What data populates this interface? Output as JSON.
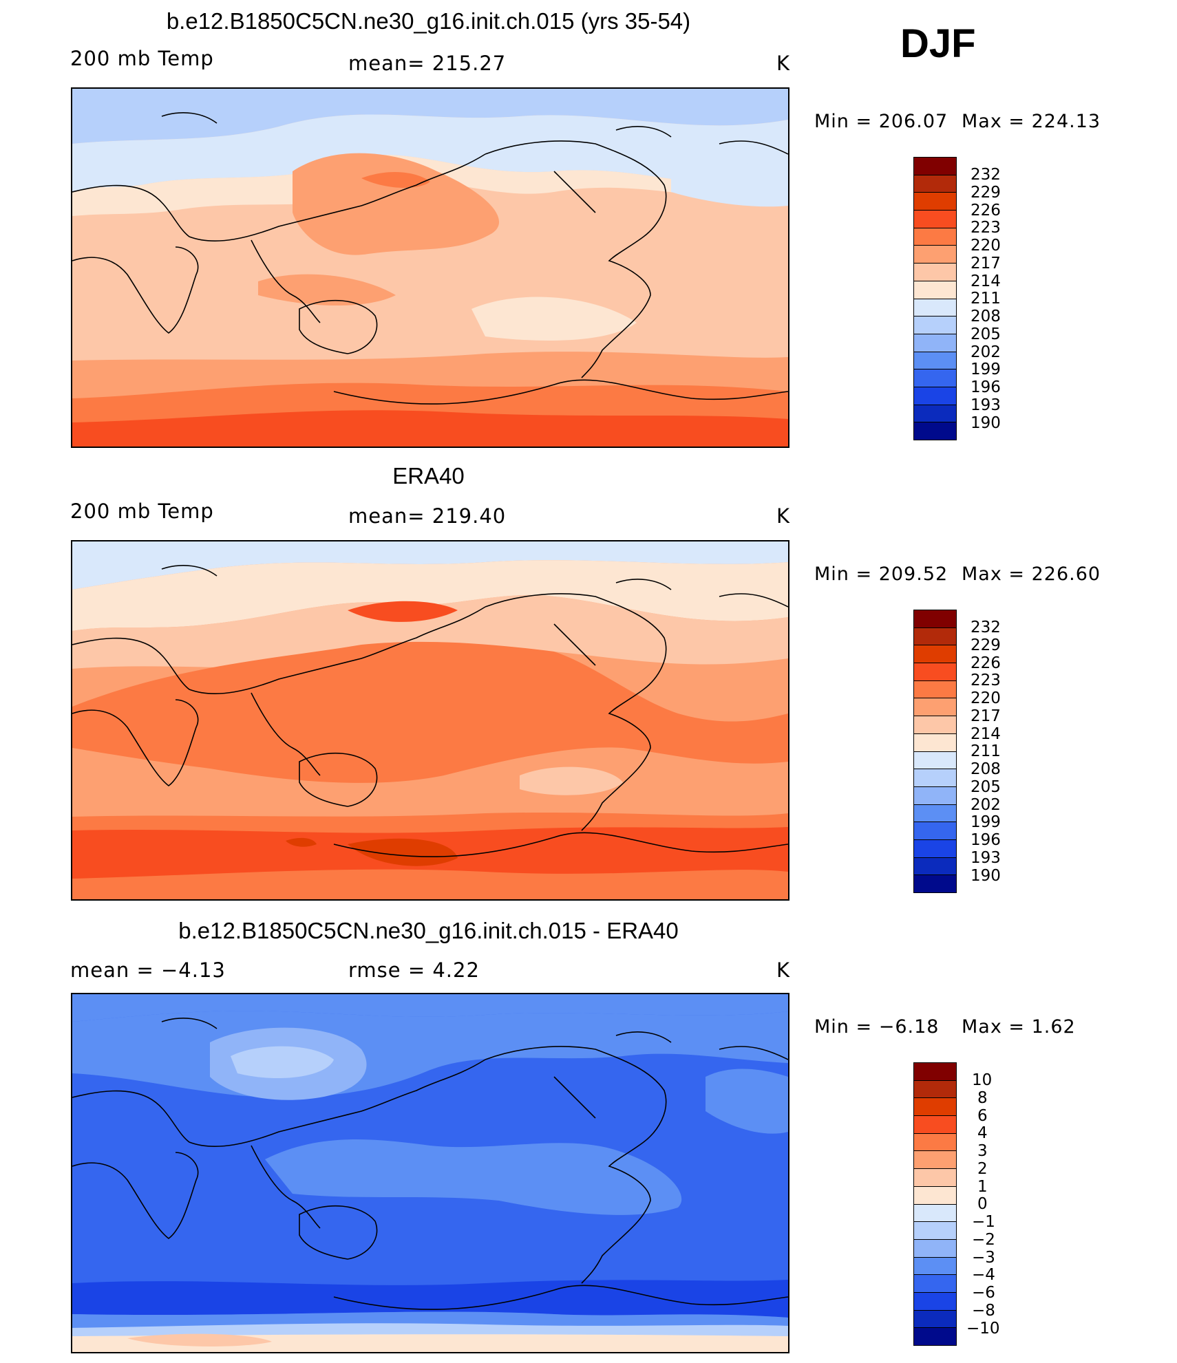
{
  "season": "DJF",
  "chart_data": [
    {
      "type": "heatmap",
      "title": "b.e12.B1850C5CN.ne30_g16.init.ch.015 (yrs 35-54)",
      "left_label": "200 mb Temp",
      "center_label": "mean=  215.27",
      "units": "K",
      "min_label": "Min  =  206.07",
      "max_label": "Max  =  224.13",
      "min": 206.07,
      "max": 224.13,
      "mean": 215.27,
      "colorbar_levels": [
        "232",
        "229",
        "226",
        "223",
        "220",
        "217",
        "214",
        "211",
        "208",
        "205",
        "202",
        "199",
        "196",
        "193",
        "190"
      ]
    },
    {
      "type": "heatmap",
      "title": "ERA40",
      "left_label": "200 mb Temp",
      "center_label": "mean=  219.40",
      "units": "K",
      "min_label": "Min  =  209.52",
      "max_label": "Max  =  226.60",
      "min": 209.52,
      "max": 226.6,
      "mean": 219.4,
      "colorbar_levels": [
        "232",
        "229",
        "226",
        "223",
        "220",
        "217",
        "214",
        "211",
        "208",
        "205",
        "202",
        "199",
        "196",
        "193",
        "190"
      ]
    },
    {
      "type": "heatmap",
      "title": "b.e12.B1850C5CN.ne30_g16.init.ch.015 - ERA40",
      "left_label": "mean  =    −4.13",
      "center_label": "rmse  =     4.22",
      "units": "K",
      "min_label": "Min  =    −6.18",
      "max_label": "Max  =     1.62",
      "min": -6.18,
      "max": 1.62,
      "mean": -4.13,
      "rmse": 4.22,
      "colorbar_levels": [
        "10",
        "8",
        "6",
        "4",
        "3",
        "2",
        "1",
        "0",
        "−1",
        "−2",
        "−3",
        "−4",
        "−6",
        "−8",
        "−10"
      ]
    }
  ],
  "colors": [
    "#800000",
    "#b22a0a",
    "#df3d00",
    "#f84d20",
    "#fc7a44",
    "#fda071",
    "#fdc7a8",
    "#fde6d2",
    "#d9e8fb",
    "#b6d0fb",
    "#90b4f8",
    "#5c8ff4",
    "#3566ef",
    "#1a44e6",
    "#0b2bbd",
    "#000a8c"
  ]
}
